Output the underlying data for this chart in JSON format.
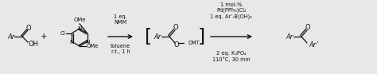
{
  "bg_color": "#e8e8e8",
  "fig_width": 4.74,
  "fig_height": 0.93,
  "dpi": 100,
  "reagent1_lines": [
    "1 eq.",
    "NMM",
    "toluene",
    "r.t., 1 h"
  ],
  "reagent2_lines": [
    "1 mol-%",
    "Pd(PPh₃)Cl₂",
    "1 eq. Ar’-B(OH)₂",
    "2 eq. K₃PO₄",
    "110°C, 30 min"
  ],
  "arrow_color": "#111111",
  "text_color": "#111111",
  "structure_color": "#111111",
  "lw": 0.9,
  "fs": 5.5,
  "fs_chem": 6.0,
  "fs_reagent": 4.8
}
